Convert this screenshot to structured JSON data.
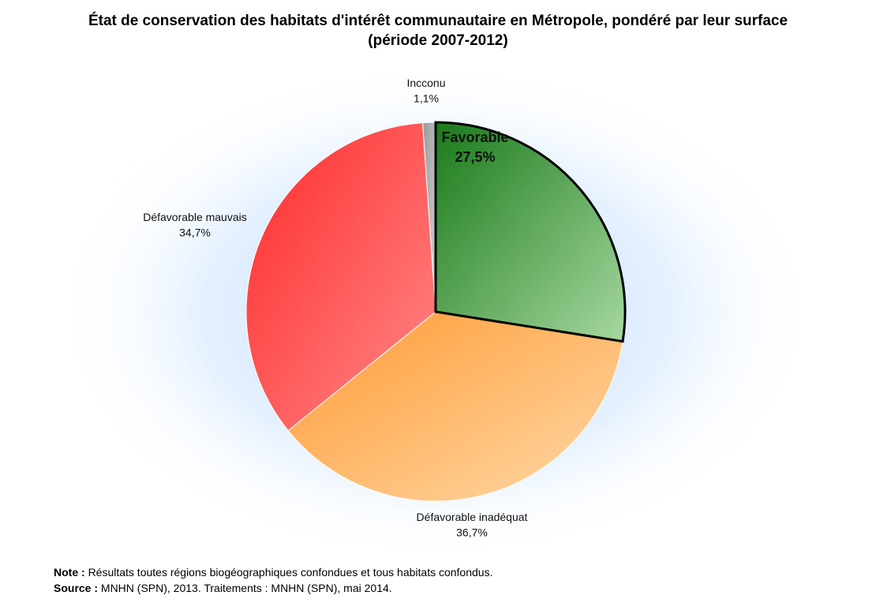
{
  "chart_data": {
    "type": "pie",
    "title": "État de conservation des habitats d'intérêt communautaire en Métropole, pondéré par leur surface",
    "subtitle": "(période 2007-2012)",
    "slices": [
      {
        "label": "Favorable",
        "value": 27.5,
        "value_label": "27,5%",
        "color_dark": "#1a7a1a",
        "color_light": "#a6d8a0",
        "highlighted": true
      },
      {
        "label": "Défavorable inadéquat",
        "value": 36.7,
        "value_label": "36,7%",
        "color_dark": "#ff9a33",
        "color_light": "#ffd9a8",
        "highlighted": false
      },
      {
        "label": "Défavorable mauvais",
        "value": 34.7,
        "value_label": "34,7%",
        "color_dark": "#ff2a2a",
        "color_light": "#ff8a8a",
        "highlighted": false
      },
      {
        "label": "Incconu",
        "value": 1.1,
        "value_label": "1,1%",
        "color_dark": "#9a9a9a",
        "color_light": "#d4d4d4",
        "highlighted": false
      }
    ],
    "start_angle": "top, clockwise"
  },
  "notes": {
    "note_label": "Note :",
    "note_text": "Résultats toutes régions biogéographiques confondues et tous habitats confondus.",
    "source_label": "Source :",
    "source_text": "MNHN (SPN), 2013. Traitements : MNHN (SPN), mai 2014."
  }
}
